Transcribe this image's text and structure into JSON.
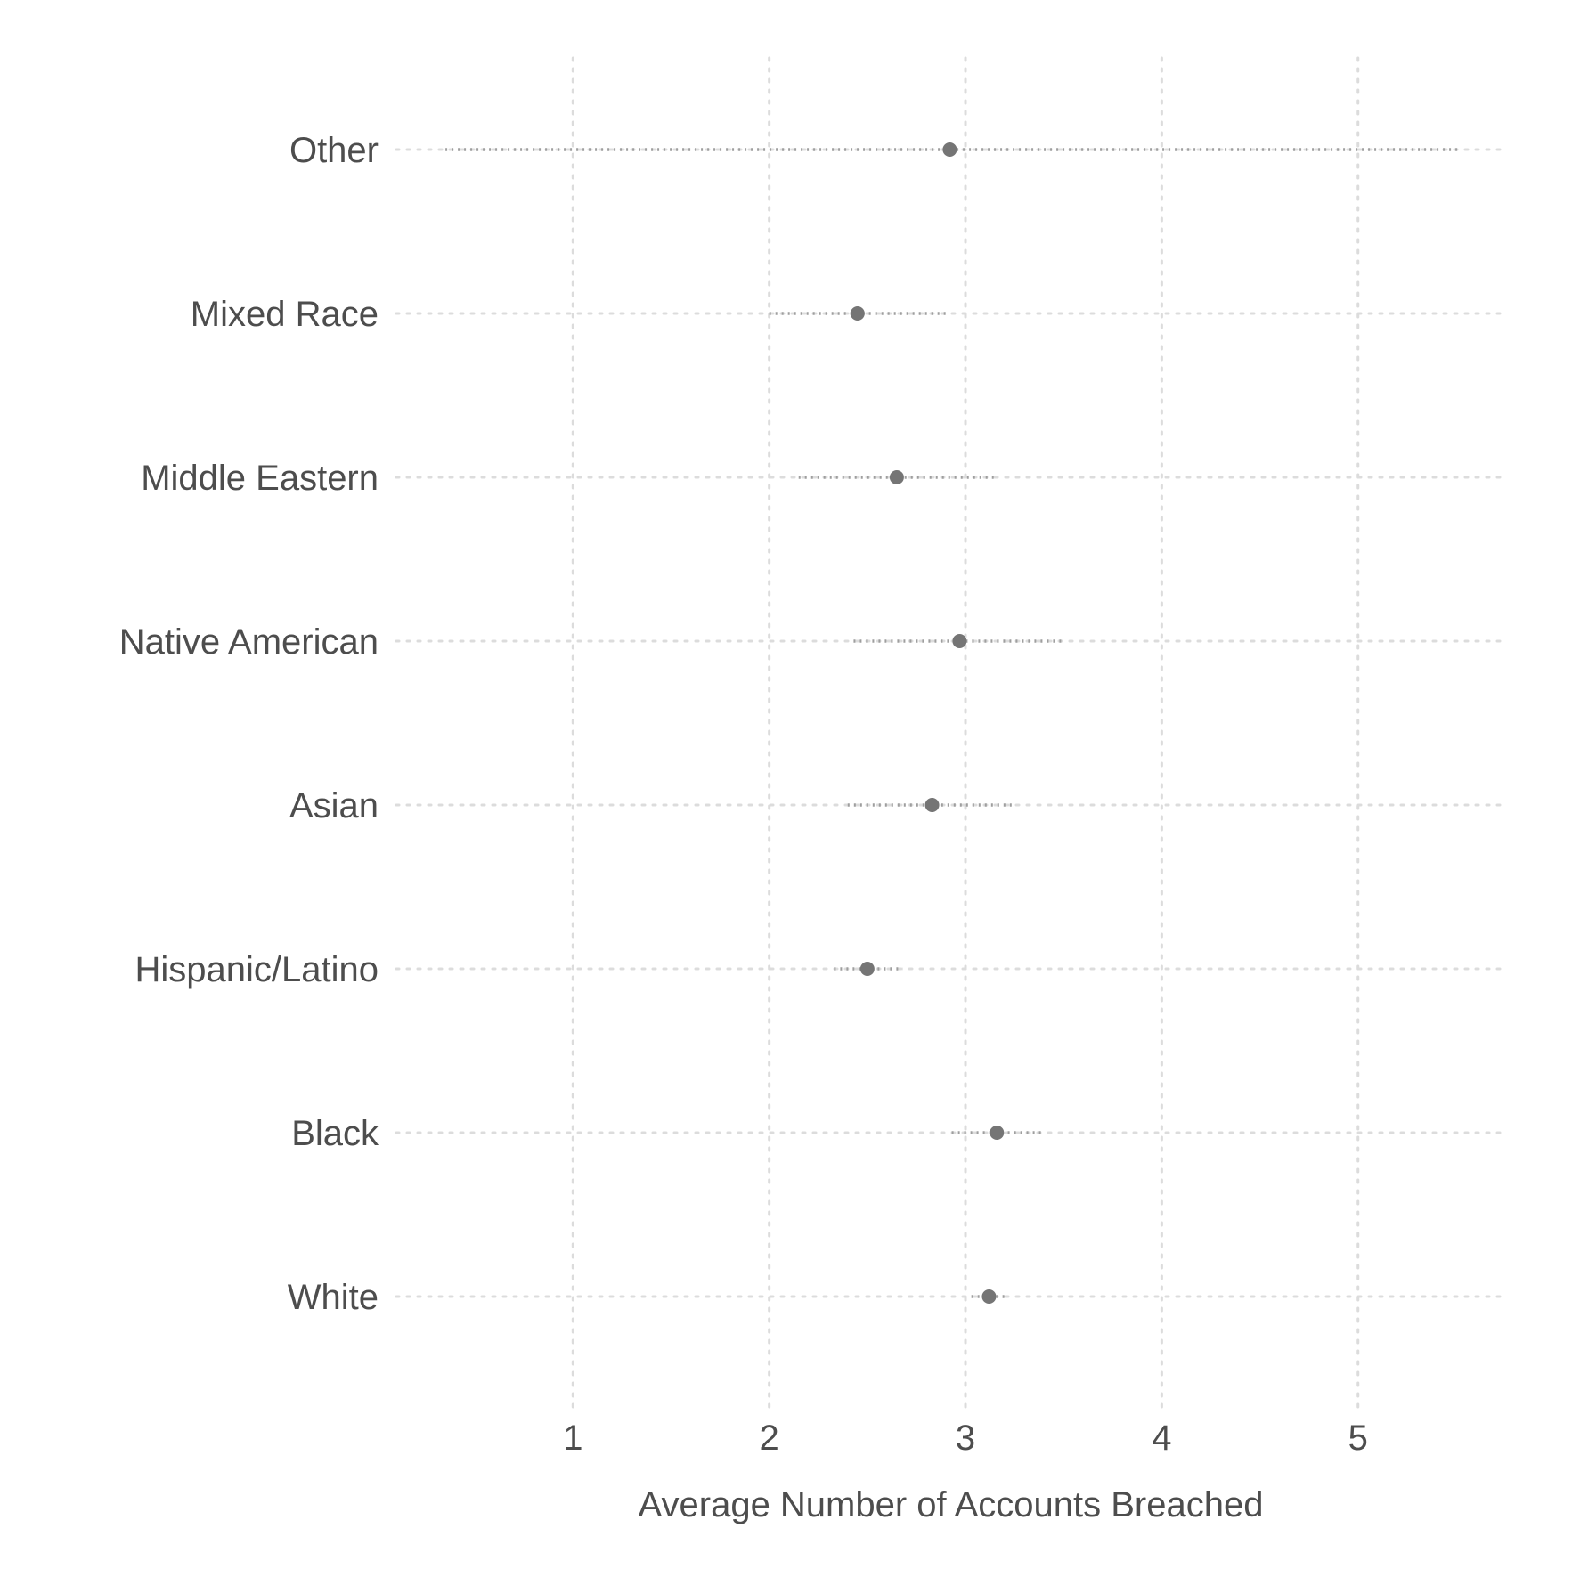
{
  "chart_data": {
    "type": "scatter",
    "subtype": "dot-plot-with-intervals",
    "title": "",
    "xlabel": "Average Number of Accounts Breached",
    "ylabel": "",
    "xlim": [
      0.1,
      5.75
    ],
    "x_ticks": [
      1,
      2,
      3,
      4,
      5
    ],
    "x_tick_labels": [
      "1",
      "2",
      "3",
      "4",
      "5"
    ],
    "grid": true,
    "grid_style": "dotted",
    "legend": "none",
    "categories": [
      "Other",
      "Mixed Race",
      "Middle Eastern",
      "Native American",
      "Asian",
      "Hispanic/Latino",
      "Black",
      "White"
    ],
    "series": [
      {
        "points": [
          {
            "category": "Other",
            "x": 2.92,
            "low": 0.35,
            "high": 5.52
          },
          {
            "category": "Mixed Race",
            "x": 2.45,
            "low": 2.0,
            "high": 2.9
          },
          {
            "category": "Middle Eastern",
            "x": 2.65,
            "low": 2.15,
            "high": 3.15
          },
          {
            "category": "Native American",
            "x": 2.97,
            "low": 2.43,
            "high": 3.5
          },
          {
            "category": "Asian",
            "x": 2.83,
            "low": 2.4,
            "high": 3.25
          },
          {
            "category": "Hispanic/Latino",
            "x": 2.5,
            "low": 2.33,
            "high": 2.68
          },
          {
            "category": "Black",
            "x": 3.16,
            "low": 2.93,
            "high": 3.4
          },
          {
            "category": "White",
            "x": 3.12,
            "low": 3.03,
            "high": 3.22
          }
        ]
      }
    ],
    "colors": {
      "point": "#757575",
      "interval": "#9e9e9e",
      "grid": "#dcdcdc",
      "text": "#4d4d4d"
    }
  }
}
